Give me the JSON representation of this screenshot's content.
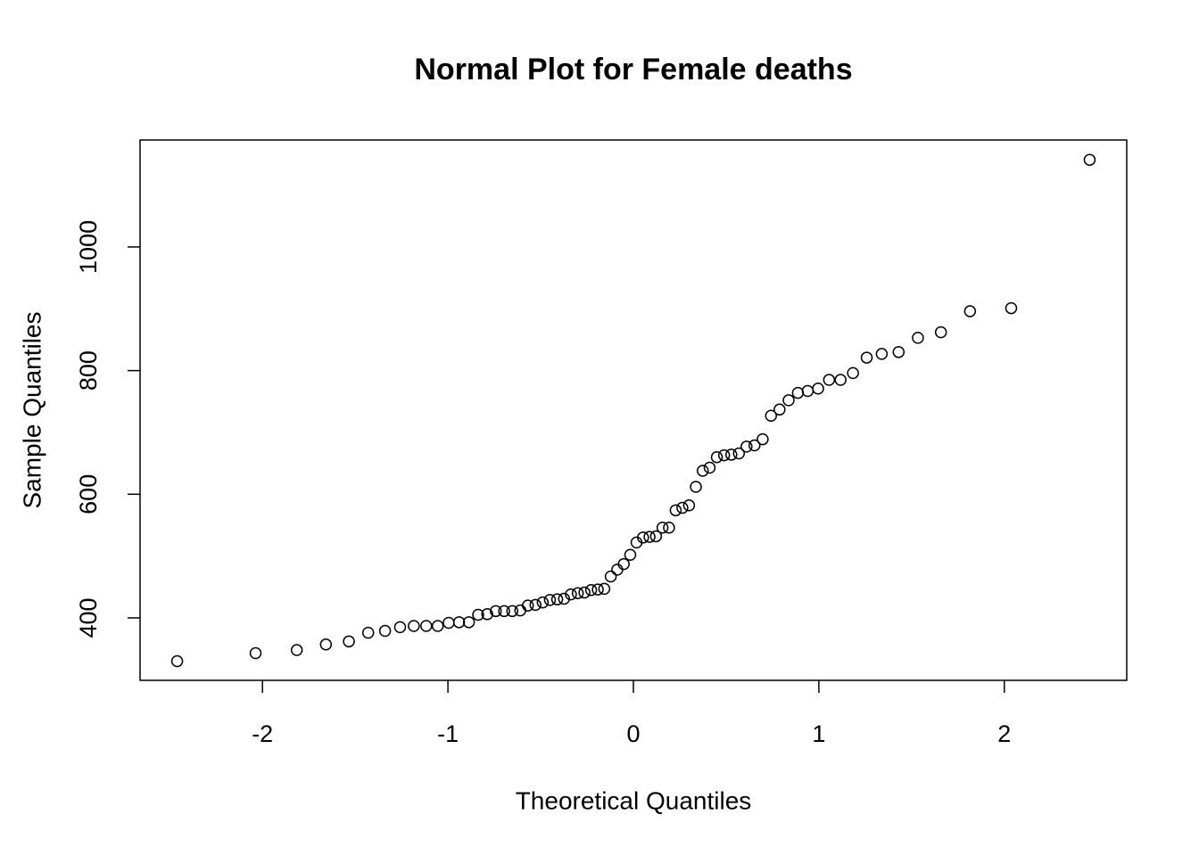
{
  "chart_data": {
    "type": "scatter",
    "title": "Normal Plot for Female deaths",
    "x_label": "Theoretical Quantiles",
    "y_label": "Sample Quantiles",
    "x": [
      -2.46,
      -2.037,
      -1.815,
      -1.658,
      -1.534,
      -1.43,
      -1.339,
      -1.258,
      -1.184,
      -1.117,
      -1.055,
      -0.996,
      -0.94,
      -0.887,
      -0.837,
      -0.788,
      -0.742,
      -0.697,
      -0.653,
      -0.61,
      -0.569,
      -0.528,
      -0.489,
      -0.45,
      -0.411,
      -0.374,
      -0.337,
      -0.3,
      -0.264,
      -0.228,
      -0.192,
      -0.157,
      -0.122,
      -0.087,
      -0.052,
      -0.017,
      0.017,
      0.052,
      0.087,
      0.122,
      0.157,
      0.192,
      0.228,
      0.264,
      0.3,
      0.337,
      0.374,
      0.411,
      0.45,
      0.489,
      0.528,
      0.569,
      0.61,
      0.653,
      0.697,
      0.742,
      0.788,
      0.837,
      0.887,
      0.94,
      0.996,
      1.055,
      1.117,
      1.184,
      1.258,
      1.339,
      1.43,
      1.534,
      1.658,
      1.815,
      2.037,
      2.46
    ],
    "values": [
      330,
      343,
      348,
      357,
      362,
      376,
      379,
      385,
      387,
      387,
      387,
      392,
      393,
      393,
      405,
      406,
      411,
      411,
      411,
      412,
      420,
      421,
      425,
      429,
      430,
      431,
      438,
      440,
      441,
      445,
      446,
      447,
      467,
      478,
      487,
      502,
      522,
      530,
      531,
      532,
      546,
      546,
      574,
      578,
      582,
      612,
      638,
      643,
      660,
      663,
      664,
      666,
      677,
      679,
      689,
      727,
      737,
      752,
      764,
      767,
      771,
      785,
      785,
      796,
      821,
      827,
      830,
      853,
      862,
      896,
      901,
      1141
    ],
    "color": "#000000",
    "xlim": [
      -2.66,
      2.66
    ],
    "ylim": [
      299,
      1173
    ],
    "xticks": [
      -2,
      -1,
      0,
      1,
      2
    ],
    "yticks": [
      400,
      600,
      800,
      1000
    ]
  }
}
